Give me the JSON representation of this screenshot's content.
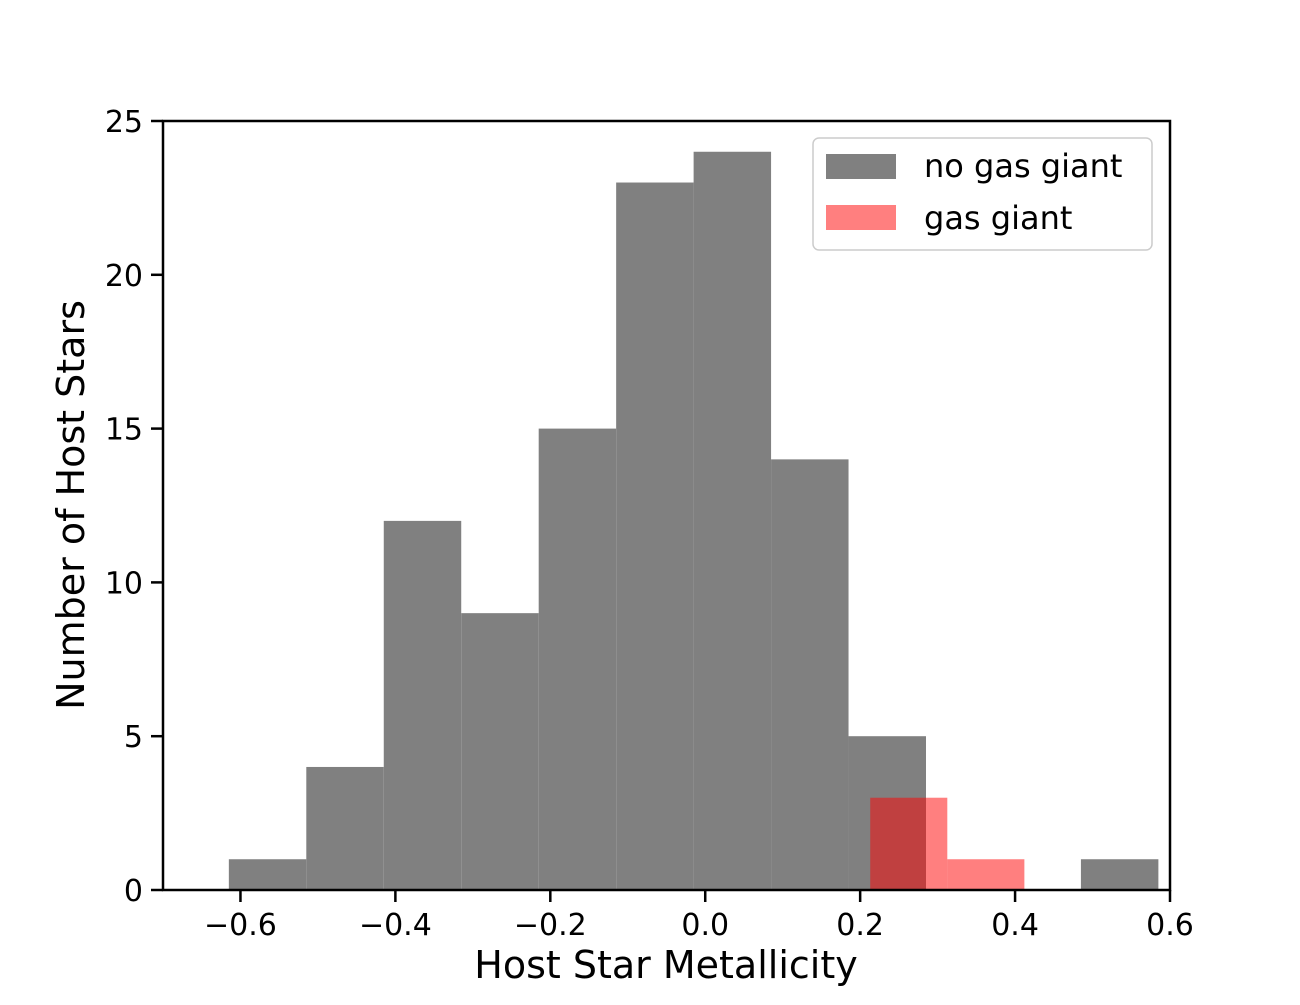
{
  "chart_data": {
    "type": "bar",
    "title": "",
    "xlabel": "Host Star Metallicity",
    "ylabel": "Number of Host Stars",
    "xlim": [
      -0.7,
      0.6
    ],
    "ylim": [
      0,
      25
    ],
    "x_ticks": [
      {
        "value": -0.6,
        "label": "−0.6"
      },
      {
        "value": -0.4,
        "label": "−0.4"
      },
      {
        "value": -0.2,
        "label": "−0.2"
      },
      {
        "value": 0.0,
        "label": "0.0"
      },
      {
        "value": 0.2,
        "label": "0.2"
      },
      {
        "value": 0.4,
        "label": "0.4"
      },
      {
        "value": 0.6,
        "label": "0.6"
      }
    ],
    "y_ticks": [
      {
        "value": 0,
        "label": "0"
      },
      {
        "value": 5,
        "label": "5"
      },
      {
        "value": 10,
        "label": "10"
      },
      {
        "value": 15,
        "label": "15"
      },
      {
        "value": 20,
        "label": "20"
      },
      {
        "value": 25,
        "label": "25"
      }
    ],
    "grid": false,
    "legend_position": "top-right",
    "series": [
      {
        "name": "no gas giant",
        "color": "#808080",
        "opacity": 1.0,
        "bin_edges": [
          -0.615,
          -0.515,
          -0.415,
          -0.315,
          -0.215,
          -0.115,
          -0.015,
          0.085,
          0.185,
          0.285,
          0.385,
          0.485,
          0.585
        ],
        "counts": [
          1,
          4,
          12,
          9,
          15,
          23,
          24,
          14,
          5,
          0,
          0,
          1
        ]
      },
      {
        "name": "gas giant",
        "color": "#ff0000",
        "opacity": 0.5,
        "bin_edges": [
          0.213,
          0.3125,
          0.412
        ],
        "counts": [
          3,
          1
        ]
      }
    ]
  }
}
